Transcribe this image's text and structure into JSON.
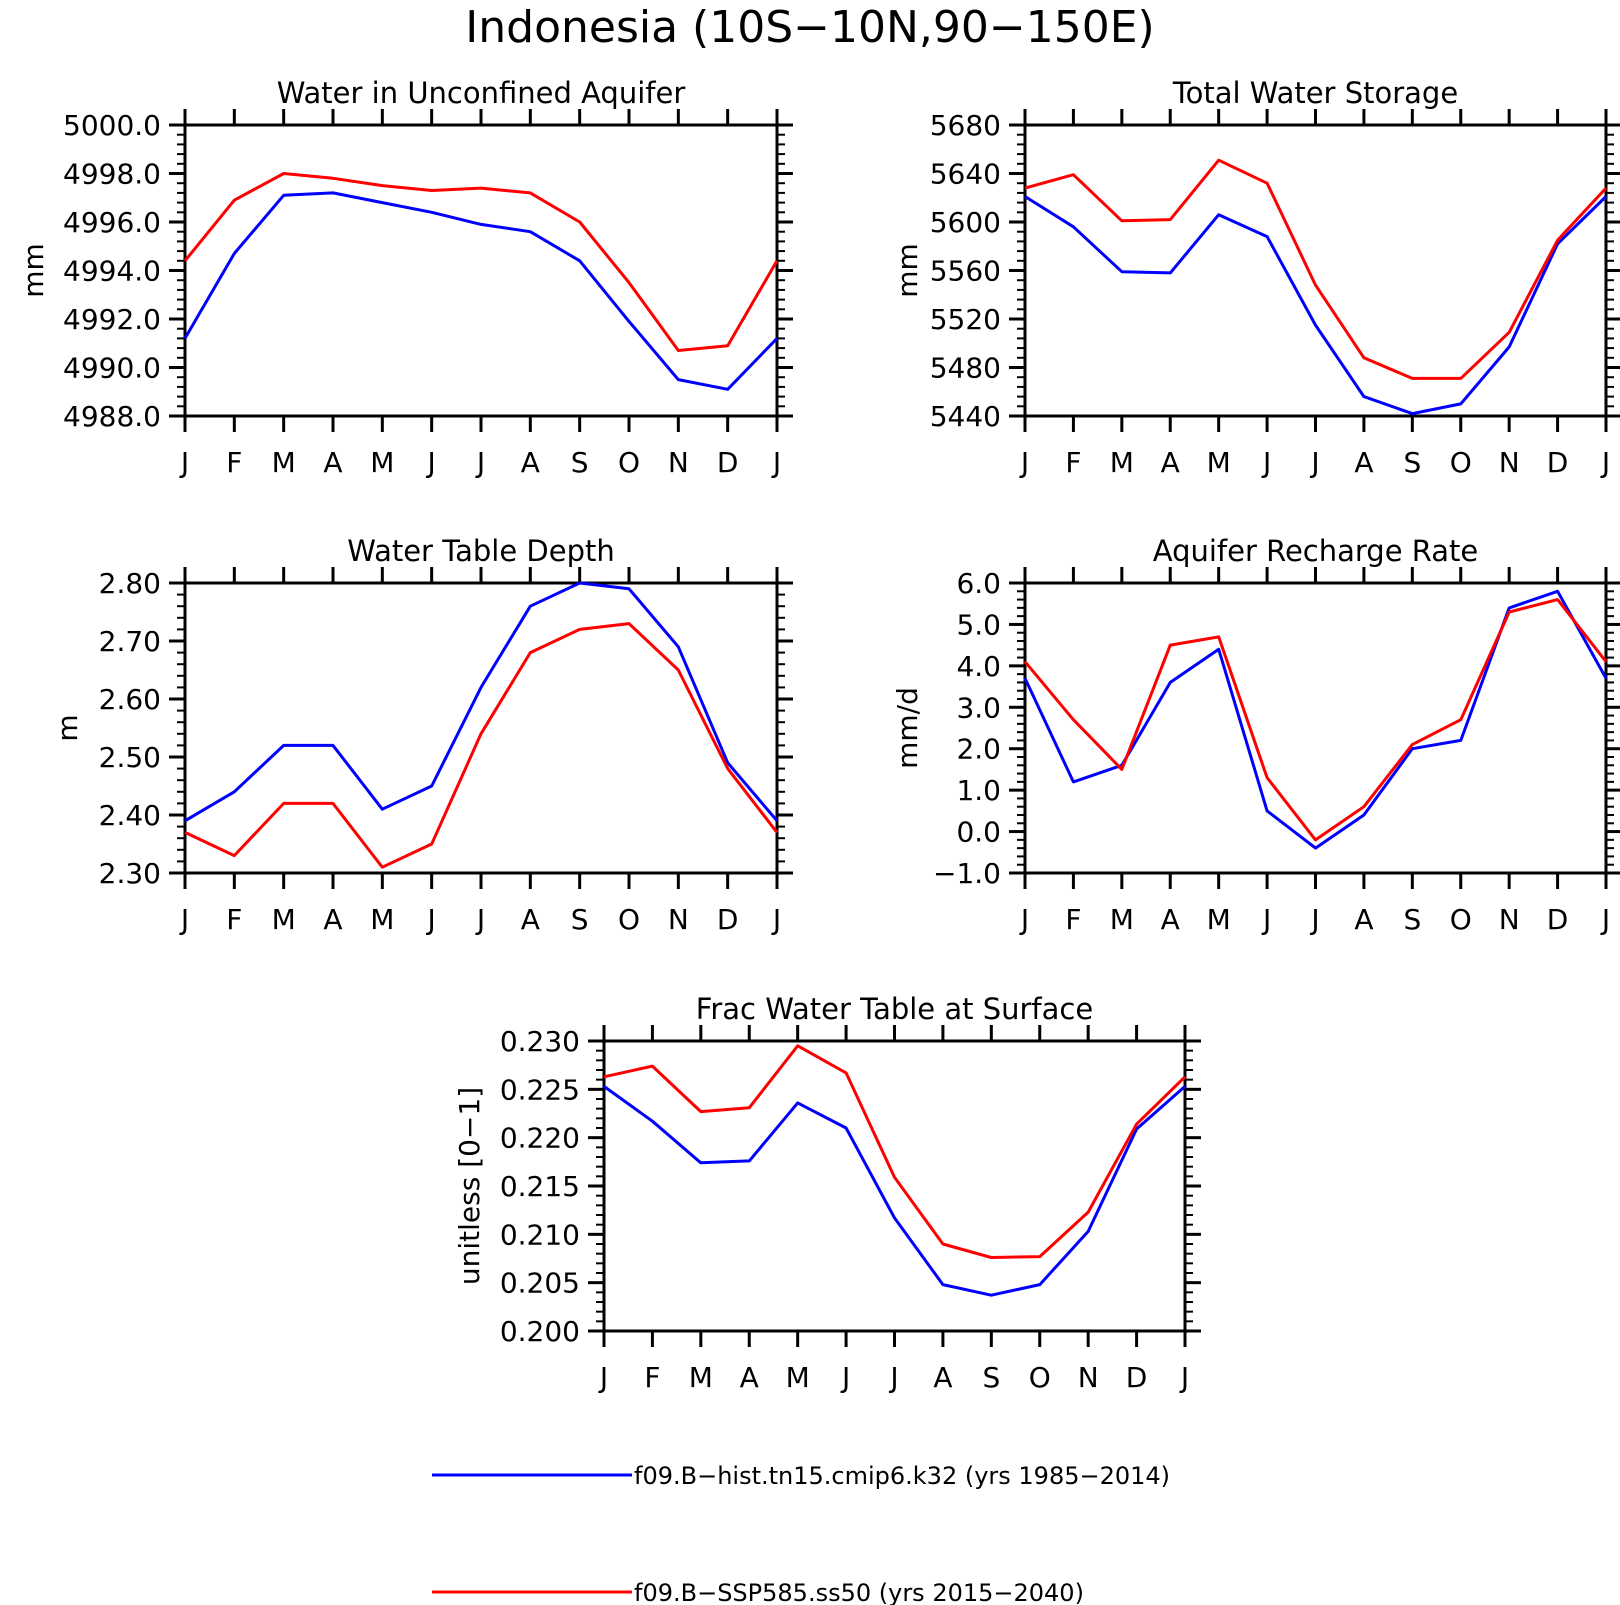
{
  "figure": {
    "title": "Indonesia (10S−10N,90−150E)",
    "series_colors": [
      "#0000ff",
      "#ff0000"
    ],
    "legend": [
      {
        "label": "f09.B−hist.tn15.cmip6.k32 (yrs 1985−2014)",
        "color": "#0000ff"
      },
      {
        "label": "f09.B−SSP585.ss50 (yrs 2015−2040)",
        "color": "#ff0000"
      }
    ]
  },
  "chart_data": [
    {
      "type": "line",
      "title": "Water in Unconfined Aquifer",
      "ylabel": "mm",
      "xlabel": "",
      "categories": [
        "J",
        "F",
        "M",
        "A",
        "M",
        "J",
        "J",
        "A",
        "S",
        "O",
        "N",
        "D",
        "J"
      ],
      "ylim": [
        4988.0,
        5000.0
      ],
      "yticks": [
        "4988.0",
        "4990.0",
        "4992.0",
        "4994.0",
        "4996.0",
        "4998.0",
        "5000.0"
      ],
      "grid": false,
      "series": [
        {
          "color": "#0000ff",
          "values": [
            4991.2,
            4994.7,
            4997.1,
            4997.2,
            4996.8,
            4996.4,
            4995.9,
            4995.6,
            4994.4,
            4991.9,
            4989.5,
            4989.1,
            4991.2
          ]
        },
        {
          "color": "#ff0000",
          "values": [
            4994.4,
            4996.9,
            4998.0,
            4997.8,
            4997.5,
            4997.3,
            4997.4,
            4997.2,
            4996.0,
            4993.5,
            4990.7,
            4990.9,
            4994.4
          ]
        }
      ]
    },
    {
      "type": "line",
      "title": "Total Water Storage",
      "ylabel": "mm",
      "xlabel": "",
      "categories": [
        "J",
        "F",
        "M",
        "A",
        "M",
        "J",
        "J",
        "A",
        "S",
        "O",
        "N",
        "D",
        "J"
      ],
      "ylim": [
        5440,
        5680
      ],
      "yticks": [
        "5440",
        "5480",
        "5520",
        "5560",
        "5600",
        "5640",
        "5680"
      ],
      "grid": false,
      "series": [
        {
          "color": "#0000ff",
          "values": [
            5621,
            5596,
            5559,
            5558,
            5606,
            5588,
            5515,
            5456,
            5442,
            5450,
            5497,
            5582,
            5621
          ]
        },
        {
          "color": "#ff0000",
          "values": [
            5628,
            5639,
            5601,
            5602,
            5651,
            5632,
            5548,
            5488,
            5471,
            5471,
            5509,
            5585,
            5628
          ]
        }
      ]
    },
    {
      "type": "line",
      "title": "Water Table Depth",
      "ylabel": "m",
      "xlabel": "",
      "categories": [
        "J",
        "F",
        "M",
        "A",
        "M",
        "J",
        "J",
        "A",
        "S",
        "O",
        "N",
        "D",
        "J"
      ],
      "ylim": [
        2.3,
        2.8
      ],
      "yticks": [
        "2.30",
        "2.40",
        "2.50",
        "2.60",
        "2.70",
        "2.80"
      ],
      "grid": false,
      "series": [
        {
          "color": "#0000ff",
          "values": [
            2.39,
            2.44,
            2.52,
            2.52,
            2.41,
            2.45,
            2.62,
            2.76,
            2.8,
            2.79,
            2.69,
            2.49,
            2.39
          ]
        },
        {
          "color": "#ff0000",
          "values": [
            2.37,
            2.33,
            2.42,
            2.42,
            2.31,
            2.35,
            2.54,
            2.68,
            2.72,
            2.73,
            2.65,
            2.48,
            2.37
          ]
        }
      ]
    },
    {
      "type": "line",
      "title": "Aquifer Recharge Rate",
      "ylabel": "mm/d",
      "xlabel": "",
      "categories": [
        "J",
        "F",
        "M",
        "A",
        "M",
        "J",
        "J",
        "A",
        "S",
        "O",
        "N",
        "D",
        "J"
      ],
      "ylim": [
        -1.0,
        6.0
      ],
      "yticks": [
        "−1.0",
        "0.0",
        "1.0",
        "2.0",
        "3.0",
        "4.0",
        "5.0",
        "6.0"
      ],
      "grid": false,
      "series": [
        {
          "color": "#0000ff",
          "values": [
            3.7,
            1.2,
            1.6,
            3.6,
            4.4,
            0.5,
            -0.4,
            0.4,
            2.0,
            2.2,
            5.4,
            5.8,
            3.7
          ]
        },
        {
          "color": "#ff0000",
          "values": [
            4.1,
            2.7,
            1.5,
            4.5,
            4.7,
            1.3,
            -0.2,
            0.6,
            2.1,
            2.7,
            5.3,
            5.6,
            4.1
          ]
        }
      ]
    },
    {
      "type": "line",
      "title": "Frac Water Table at Surface",
      "ylabel": "unitless [0−1]",
      "xlabel": "",
      "categories": [
        "J",
        "F",
        "M",
        "A",
        "M",
        "J",
        "J",
        "A",
        "S",
        "O",
        "N",
        "D",
        "J"
      ],
      "ylim": [
        0.2,
        0.23
      ],
      "yticks": [
        "0.200",
        "0.205",
        "0.210",
        "0.215",
        "0.220",
        "0.225",
        "0.230"
      ],
      "grid": false,
      "series": [
        {
          "color": "#0000ff",
          "values": [
            0.2253,
            0.2217,
            0.2174,
            0.2176,
            0.2236,
            0.221,
            0.2117,
            0.2048,
            0.2037,
            0.2048,
            0.2103,
            0.2209,
            0.2253
          ]
        },
        {
          "color": "#ff0000",
          "values": [
            0.2263,
            0.2274,
            0.2227,
            0.2231,
            0.2295,
            0.2267,
            0.2159,
            0.209,
            0.2076,
            0.2077,
            0.2123,
            0.2214,
            0.2263
          ]
        }
      ]
    }
  ]
}
